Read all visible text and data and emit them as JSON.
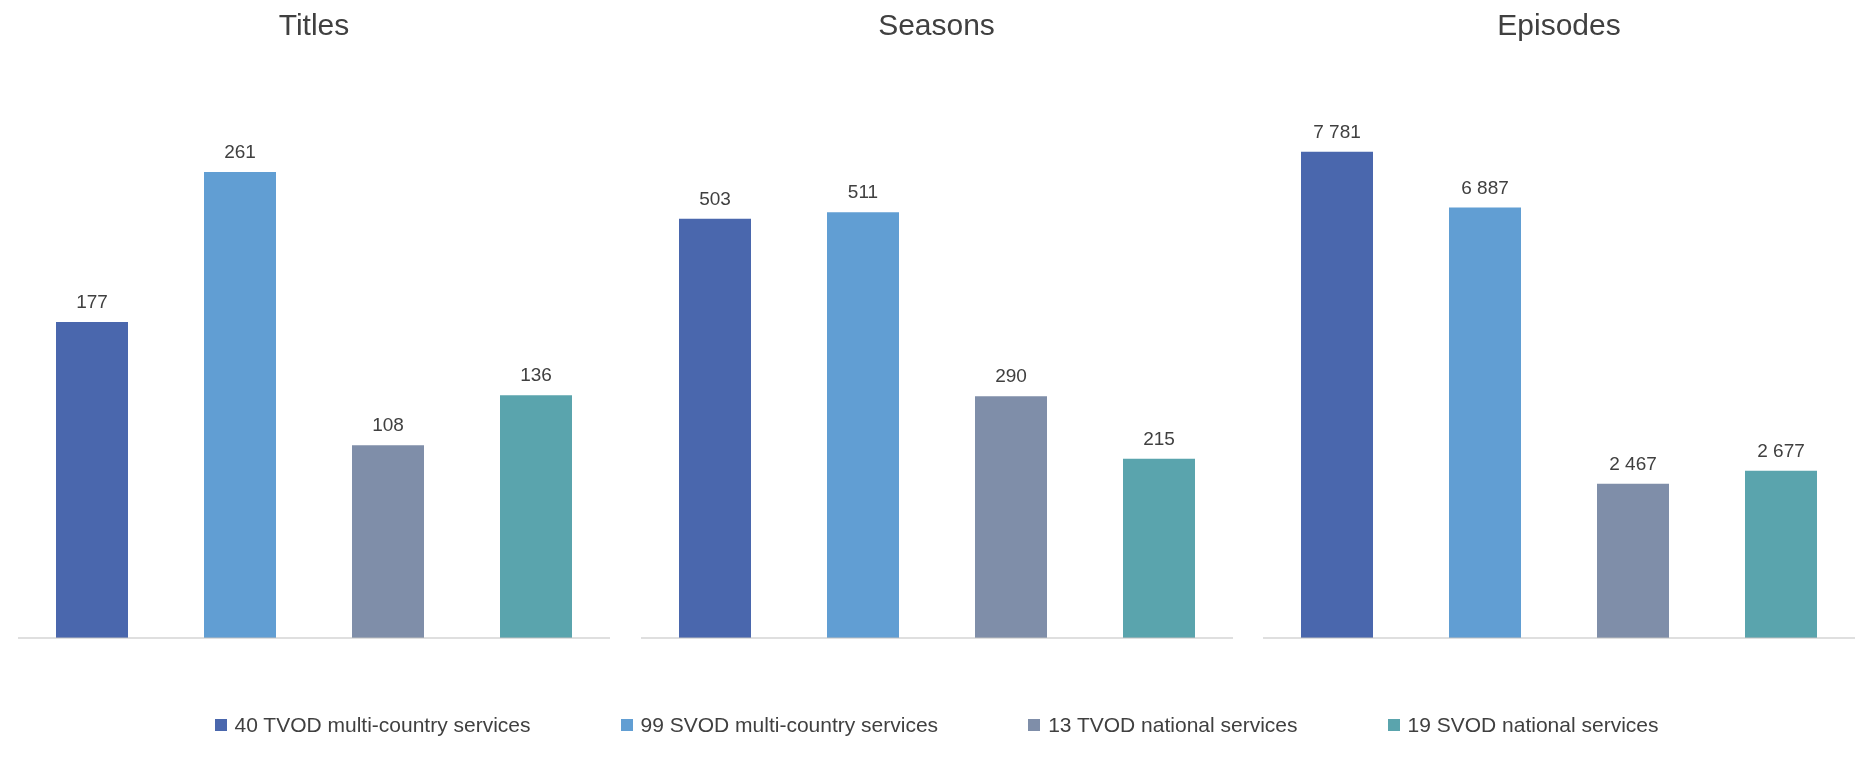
{
  "chart_data": [
    {
      "type": "bar",
      "title": "Titles",
      "categories": [
        null,
        null,
        null,
        null
      ],
      "stacked": true,
      "data_labels": true,
      "series": [
        {
          "color": "#4a67ad",
          "values": [
            177,
            null,
            null,
            null
          ]
        },
        {
          "color": "#619ed3",
          "values": [
            null,
            261,
            null,
            null
          ]
        },
        {
          "color": "#7f8ea9",
          "values": [
            null,
            null,
            108,
            null
          ]
        },
        {
          "color": "#5aa4ad",
          "values": [
            null,
            null,
            null,
            136
          ]
        }
      ]
    },
    {
      "type": "bar",
      "title": "Seasons",
      "categories": [
        null,
        null,
        null,
        null
      ],
      "stacked": true,
      "data_labels": true,
      "legend": "bottom",
      "series": [
        {
          "name": "40 TVOD multi-country services",
          "color": "#4a67ad",
          "values": [
            503,
            null,
            null,
            null
          ]
        },
        {
          "name": "99 SVOD multi-country services",
          "color": "#619ed3",
          "values": [
            null,
            511,
            null,
            null
          ]
        },
        {
          "name": "13 TVOD national services",
          "color": "#7f8ea9",
          "values": [
            null,
            null,
            290,
            null
          ]
        },
        {
          "name": "19 SVOD national services",
          "color": "#5aa4ad",
          "values": [
            null,
            null,
            null,
            215
          ]
        }
      ]
    },
    {
      "type": "bar",
      "title": "Episodes",
      "categories": [
        null,
        null,
        null,
        null
      ],
      "stacked": true,
      "data_labels": true,
      "series": [
        {
          "color": "#4a67ad",
          "values": [
            7781,
            null,
            null,
            null
          ]
        },
        {
          "color": "#619ed3",
          "values": [
            null,
            6887,
            null,
            null
          ]
        },
        {
          "color": "#7f8ea9",
          "values": [
            null,
            null,
            2467,
            null
          ]
        },
        {
          "color": "#5aa4ad",
          "values": [
            null,
            null,
            null,
            2677
          ]
        }
      ]
    }
  ]
}
